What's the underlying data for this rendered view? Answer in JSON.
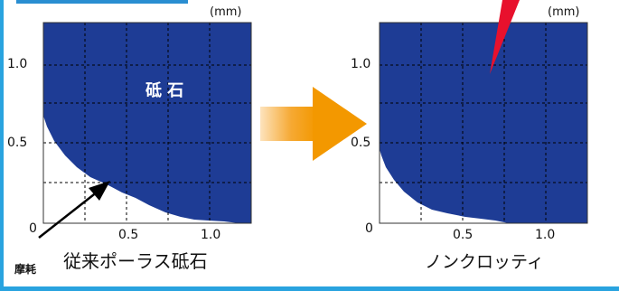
{
  "charts": [
    {
      "id": "left",
      "unit": "(mm)",
      "y_ticks": [
        "1.0",
        "0.5",
        "0"
      ],
      "x_ticks": [
        "0.5",
        "1.0"
      ],
      "region_label": "砥 石",
      "caption": "従来ポーラス砥石"
    },
    {
      "id": "right",
      "unit": "(mm)",
      "y_ticks": [
        "1.0",
        "0.5",
        "0"
      ],
      "x_ticks": [
        "0.5",
        "1.0"
      ],
      "caption": "ノンクロッティ"
    }
  ],
  "wear_label": "摩耗",
  "colors": {
    "wheel": "#1e3c95",
    "arrow_orange": "#f39800",
    "pointer_red": "#e8112d",
    "frame": "#29a3df"
  }
}
